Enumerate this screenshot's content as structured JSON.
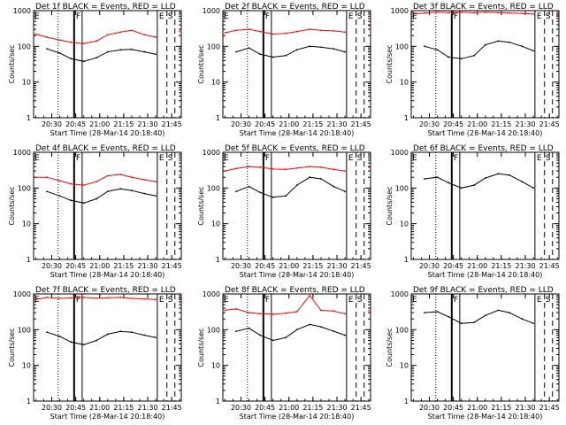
{
  "common": {
    "ylabel": "Counts/sec",
    "xlabel": "Start Time (28-Mar-14 20:18:40)",
    "x_ticks": [
      "20:30",
      "20:45",
      "21:00",
      "21:15",
      "21:30",
      "21:45"
    ],
    "y_ticks": [
      "1",
      "10",
      "100",
      "1000"
    ],
    "markers": [
      "E",
      "F",
      "E",
      "S"
    ],
    "colors": {
      "events": "#000000",
      "lld": "#ff0000"
    }
  },
  "chart_data": [
    {
      "type": "line",
      "title": "Det 1f BLACK = Events, RED = LLD",
      "xlim": [
        "20:18:40",
        "21:51:00"
      ],
      "ylim": [
        1,
        1000
      ],
      "yscale": "log",
      "grid": false,
      "x_sample_times": [
        "20:20",
        "20:27",
        "20:35",
        "20:42",
        "20:50",
        "20:58",
        "21:05",
        "21:13",
        "21:20",
        "21:28",
        "21:35",
        "21:43",
        "21:50"
      ],
      "series": [
        {
          "name": "Events",
          "values": [
            null,
            85,
            65,
            45,
            38,
            48,
            70,
            80,
            82,
            70,
            60,
            null,
            null
          ]
        },
        {
          "name": "LLD",
          "values": [
            220,
            180,
            150,
            130,
            120,
            140,
            210,
            250,
            280,
            210,
            180,
            null,
            260
          ]
        }
      ]
    },
    {
      "type": "line",
      "title": "Det 2f BLACK = Events, RED = LLD",
      "xlim": [
        "20:18:40",
        "21:51:00"
      ],
      "ylim": [
        1,
        1000
      ],
      "yscale": "log",
      "grid": false,
      "x_sample_times": [
        "20:20",
        "20:27",
        "20:35",
        "20:42",
        "20:50",
        "20:58",
        "21:05",
        "21:13",
        "21:20",
        "21:28",
        "21:35",
        "21:43",
        "21:50"
      ],
      "series": [
        {
          "name": "Events",
          "values": [
            null,
            70,
            90,
            60,
            50,
            55,
            80,
            100,
            95,
            85,
            70,
            null,
            null
          ]
        },
        {
          "name": "LLD",
          "values": [
            240,
            280,
            300,
            260,
            220,
            230,
            260,
            300,
            280,
            270,
            250,
            null,
            380
          ]
        }
      ]
    },
    {
      "type": "line",
      "title": "Det 3f BLACK = Events, RED = LLD",
      "xlim": [
        "20:18:40",
        "21:51:00"
      ],
      "ylim": [
        1,
        1000
      ],
      "yscale": "log",
      "grid": false,
      "x_sample_times": [
        "20:20",
        "20:27",
        "20:35",
        "20:42",
        "20:50",
        "20:58",
        "21:05",
        "21:13",
        "21:20",
        "21:28",
        "21:35",
        "21:43",
        "21:50"
      ],
      "series": [
        {
          "name": "Events",
          "values": [
            null,
            100,
            80,
            50,
            45,
            55,
            110,
            140,
            130,
            100,
            75,
            null,
            null
          ]
        },
        {
          "name": "LLD",
          "values": [
            800,
            850,
            900,
            880,
            900,
            870,
            900,
            880,
            850,
            830,
            800,
            null,
            750
          ]
        }
      ]
    },
    {
      "type": "line",
      "title": "Det 4f BLACK = Events, RED = LLD",
      "xlim": [
        "20:18:40",
        "21:51:00"
      ],
      "ylim": [
        1,
        1000
      ],
      "yscale": "log",
      "grid": false,
      "x_sample_times": [
        "20:20",
        "20:27",
        "20:35",
        "20:42",
        "20:50",
        "20:58",
        "21:05",
        "21:13",
        "21:20",
        "21:28",
        "21:35",
        "21:43",
        "21:50"
      ],
      "series": [
        {
          "name": "Events",
          "values": [
            null,
            80,
            60,
            45,
            38,
            50,
            80,
            95,
            85,
            70,
            60,
            null,
            null
          ]
        },
        {
          "name": "LLD",
          "values": [
            200,
            200,
            160,
            130,
            120,
            150,
            220,
            240,
            200,
            170,
            150,
            null,
            230
          ]
        }
      ]
    },
    {
      "type": "line",
      "title": "Det 5f BLACK = Events, RED = LLD",
      "xlim": [
        "20:18:40",
        "21:51:00"
      ],
      "ylim": [
        1,
        1000
      ],
      "yscale": "log",
      "grid": false,
      "x_sample_times": [
        "20:20",
        "20:27",
        "20:35",
        "20:42",
        "20:50",
        "20:58",
        "21:05",
        "21:13",
        "21:20",
        "21:28",
        "21:35",
        "21:43",
        "21:50"
      ],
      "series": [
        {
          "name": "Events",
          "values": [
            null,
            80,
            110,
            75,
            55,
            60,
            120,
            200,
            180,
            110,
            80,
            null,
            null
          ]
        },
        {
          "name": "LLD",
          "values": [
            300,
            350,
            400,
            380,
            340,
            330,
            360,
            400,
            380,
            330,
            300,
            null,
            380
          ]
        }
      ]
    },
    {
      "type": "line",
      "title": "Det 6f BLACK = Events, RED = LLD",
      "xlim": [
        "20:18:40",
        "21:51:00"
      ],
      "ylim": [
        1,
        1000
      ],
      "yscale": "log",
      "grid": false,
      "x_sample_times": [
        "20:20",
        "20:27",
        "20:35",
        "20:42",
        "20:50",
        "20:58",
        "21:05",
        "21:13",
        "21:20",
        "21:28",
        "21:35",
        "21:43",
        "21:50"
      ],
      "series": [
        {
          "name": "Events",
          "values": [
            null,
            180,
            200,
            140,
            100,
            120,
            190,
            250,
            230,
            150,
            100,
            null,
            null
          ]
        }
      ]
    },
    {
      "type": "line",
      "title": "Det 7f BLACK = Events, RED = LLD",
      "xlim": [
        "20:18:40",
        "21:51:00"
      ],
      "ylim": [
        1,
        1000
      ],
      "yscale": "log",
      "grid": false,
      "x_sample_times": [
        "20:20",
        "20:27",
        "20:35",
        "20:42",
        "20:50",
        "20:58",
        "21:05",
        "21:13",
        "21:20",
        "21:28",
        "21:35",
        "21:43",
        "21:50"
      ],
      "series": [
        {
          "name": "Events",
          "values": [
            null,
            85,
            65,
            45,
            38,
            50,
            75,
            90,
            85,
            70,
            60,
            null,
            null
          ]
        },
        {
          "name": "LLD",
          "values": [
            700,
            800,
            750,
            780,
            800,
            760,
            780,
            800,
            750,
            720,
            700,
            null,
            760
          ]
        }
      ]
    },
    {
      "type": "line",
      "title": "Det 8f BLACK = Events, RED = LLD",
      "xlim": [
        "20:18:40",
        "21:51:00"
      ],
      "ylim": [
        1,
        1000
      ],
      "yscale": "log",
      "grid": false,
      "x_sample_times": [
        "20:20",
        "20:27",
        "20:35",
        "20:42",
        "20:50",
        "20:58",
        "21:05",
        "21:13",
        "21:20",
        "21:28",
        "21:35",
        "21:43",
        "21:50"
      ],
      "series": [
        {
          "name": "Events",
          "values": [
            null,
            90,
            110,
            70,
            50,
            60,
            100,
            140,
            120,
            90,
            70,
            null,
            null
          ]
        },
        {
          "name": "LLD",
          "values": [
            350,
            380,
            300,
            280,
            270,
            290,
            320,
            900,
            350,
            330,
            280,
            null,
            340
          ]
        }
      ]
    },
    {
      "type": "line",
      "title": "Det 9f BLACK = Events, RED = LLD",
      "xlim": [
        "20:18:40",
        "21:51:00"
      ],
      "ylim": [
        1,
        1000
      ],
      "yscale": "log",
      "grid": false,
      "x_sample_times": [
        "20:20",
        "20:27",
        "20:35",
        "20:42",
        "20:50",
        "20:58",
        "21:05",
        "21:13",
        "21:20",
        "21:28",
        "21:35",
        "21:43",
        "21:50"
      ],
      "series": [
        {
          "name": "Events",
          "values": [
            null,
            300,
            320,
            230,
            150,
            160,
            250,
            350,
            300,
            200,
            150,
            null,
            null
          ]
        }
      ]
    }
  ]
}
